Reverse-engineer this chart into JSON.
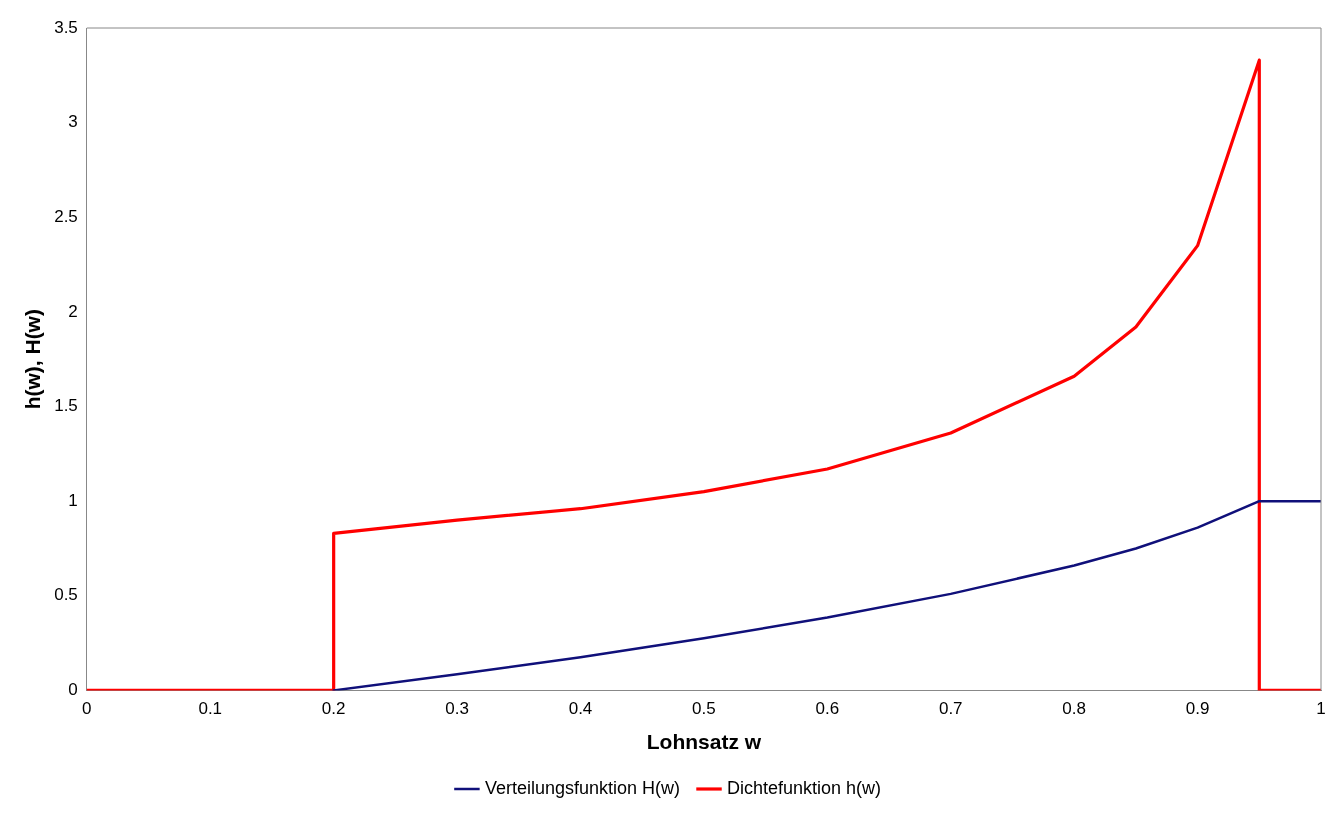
{
  "chart_data": {
    "type": "line",
    "xlabel": "Lohnsatz w",
    "ylabel": "h(w), H(w)",
    "xlim": [
      0,
      1
    ],
    "xticks": [
      0,
      0.1,
      0.2,
      0.3,
      0.4,
      0.5,
      0.6,
      0.7,
      0.8,
      0.9,
      1
    ],
    "ylim": [
      0,
      3.5
    ],
    "yticks": [
      0,
      0.5,
      1,
      1.5,
      2,
      2.5,
      3,
      3.5
    ],
    "grid": false,
    "legend": "bottom",
    "marker": "none",
    "line_style": "solid",
    "series": [
      {
        "name": "Verteilungsfunktion H(w)",
        "color": "#10107a",
        "x": [
          0.2,
          0.3,
          0.4,
          0.5,
          0.6,
          0.7,
          0.8,
          0.85,
          0.9,
          0.95,
          1
        ],
        "values": [
          0,
          0.085,
          0.175,
          0.275,
          0.385,
          0.51,
          0.66,
          0.75,
          0.86,
          1,
          1
        ]
      },
      {
        "name": "Dichtefunktion h(w)",
        "color": "#ff0000",
        "x": [
          0,
          0.2,
          0.2,
          0.3,
          0.4,
          0.5,
          0.6,
          0.7,
          0.8,
          0.85,
          0.9,
          0.95,
          0.95,
          1
        ],
        "values": [
          0,
          0,
          0.83,
          0.9,
          0.96,
          1.05,
          1.17,
          1.36,
          1.66,
          1.92,
          2.35,
          3.33,
          0,
          0
        ]
      }
    ]
  }
}
